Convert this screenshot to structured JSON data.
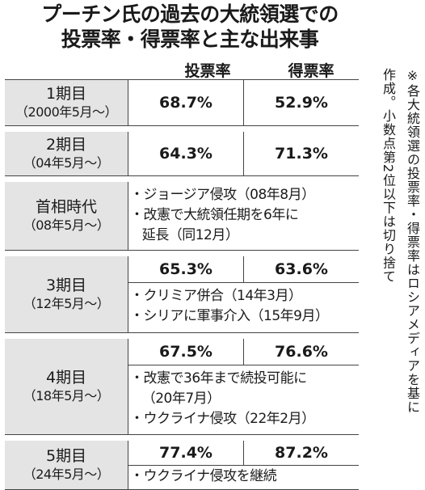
{
  "title": {
    "line1": "プーチン氏の過去の大統領選での",
    "line2": "投票率・得票率と主な出来事"
  },
  "columns": {
    "turnout": "投票率",
    "vote_share": "得票率"
  },
  "rows": [
    {
      "name": "1期目",
      "date": "（2000年5月〜）",
      "turnout": "68.7%",
      "vote_share": "52.9%",
      "events": []
    },
    {
      "name": "2期目",
      "date": "（04年5月〜）",
      "turnout": "64.3%",
      "vote_share": "71.3%",
      "events": []
    },
    {
      "name": "首相時代",
      "date": "（08年5月〜）",
      "turnout": null,
      "vote_share": null,
      "events": [
        "・ジョージア侵攻（08年8月）",
        "・改憲で大統領任期を6年に",
        "   延長（同12月）"
      ]
    },
    {
      "name": "3期目",
      "date": "（12年5月〜）",
      "turnout": "65.3%",
      "vote_share": "63.6%",
      "events": [
        "・クリミア併合（14年3月）",
        "・シリアに軍事介入（15年9月）"
      ]
    },
    {
      "name": "4期目",
      "date": "（18年5月〜）",
      "turnout": "67.5%",
      "vote_share": "76.6%",
      "events": [
        "・改憲で36年まで続投可能に",
        "   （20年7月）",
        "・ウクライナ侵攻（22年2月）"
      ]
    },
    {
      "name": "5期目",
      "date": "（24年5月〜）",
      "turnout": "77.4%",
      "vote_share": "87.2%",
      "events": [
        "・ウクライナ侵攻を継続"
      ]
    }
  ],
  "note": {
    "line1": "※各大統領選の投票率・得票率はロシアメディアを基に",
    "line2": "作成。小数点第2位以下は切り捨て"
  }
}
